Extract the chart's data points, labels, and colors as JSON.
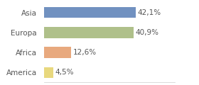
{
  "categories": [
    "Asia",
    "Europa",
    "Africa",
    "America"
  ],
  "values": [
    42.1,
    40.9,
    12.6,
    4.5
  ],
  "labels": [
    "42,1%",
    "40,9%",
    "12,6%",
    "4,5%"
  ],
  "bar_colors": [
    "#7191c0",
    "#afc08a",
    "#e8a97e",
    "#e8d87e"
  ],
  "background_color": "#ffffff",
  "xlim": [
    0,
    60
  ],
  "label_fontsize": 7.5,
  "category_fontsize": 7.5,
  "bar_height": 0.55
}
